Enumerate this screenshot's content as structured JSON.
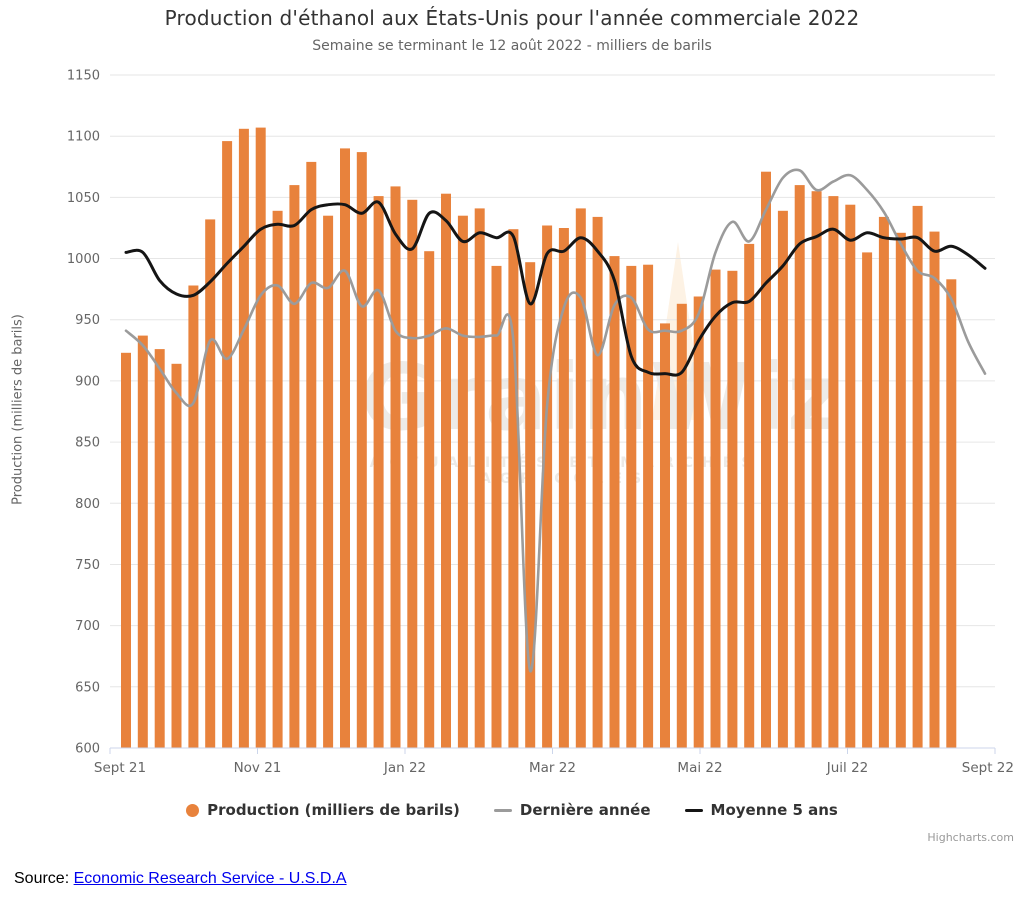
{
  "title": "Production d'éthanol aux États-Unis pour l'année commerciale 2022",
  "subtitle": "Semaine se terminant le 12 août 2022 - milliers de barils",
  "y_axis_title": "Production (milliers de barils)",
  "credits": "Highcharts.com",
  "watermark": {
    "brand": "GrainWiz",
    "tagline": "ACTUALITÉS ET MARCHÉS AGRICOLES"
  },
  "source": {
    "prefix": "Source: ",
    "link_text": "Economic Research Service - U.S.D.A"
  },
  "legend": [
    {
      "label": "Production (milliers de barils)",
      "marker": "circle",
      "color": "#e8823c"
    },
    {
      "label": "Dernière année",
      "marker": "line",
      "color": "#9b9b9b"
    },
    {
      "label": "Moyenne 5 ans",
      "marker": "line",
      "color": "#151515"
    }
  ],
  "chart_data": {
    "type": "bar",
    "title": "Production d'éthanol aux États-Unis pour l'année commerciale 2022",
    "subtitle": "Semaine se terminant le 12 août 2022 - milliers de barils",
    "xlabel": "",
    "ylabel": "Production (milliers de barils)",
    "ylim": [
      600,
      1150
    ],
    "y_tick_step": 50,
    "grid": true,
    "legend_position": "bottom",
    "x_tick_labels": [
      "Sept 21",
      "Nov 21",
      "Jan 22",
      "Mar 22",
      "Mai 22",
      "Juil 22",
      "Sept 22"
    ],
    "colors": {
      "bar": "#e8823c",
      "last_year": "#9b9b9b",
      "five_year_avg": "#151515",
      "grid": "#e6e6e6",
      "axis": "#ccd6eb",
      "tick_text": "#666666"
    },
    "series": [
      {
        "name": "Production (milliers de barils)",
        "type": "bar",
        "color": "#e8823c",
        "values": [
          923,
          937,
          926,
          914,
          978,
          1032,
          1096,
          1106,
          1107,
          1039,
          1060,
          1079,
          1035,
          1090,
          1087,
          1051,
          1059,
          1048,
          1006,
          1053,
          1035,
          1041,
          994,
          1024,
          997,
          1027,
          1025,
          1041,
          1034,
          1002,
          994,
          995,
          947,
          963,
          969,
          991,
          990,
          1012,
          1071,
          1039,
          1060,
          1055,
          1051,
          1044,
          1005,
          1034,
          1021,
          1043,
          1022,
          983
        ]
      },
      {
        "name": "Dernière année",
        "type": "line",
        "color": "#9b9b9b",
        "values": [
          941,
          929,
          910,
          890,
          882,
          933,
          918,
          942,
          970,
          978,
          963,
          980,
          976,
          990,
          961,
          974,
          941,
          935,
          937,
          943,
          937,
          936,
          937,
          933,
          663,
          880,
          960,
          968,
          921,
          962,
          968,
          942,
          941,
          941,
          955,
          1005,
          1030,
          1014,
          1040,
          1066,
          1072,
          1056,
          1063,
          1068,
          1056,
          1038,
          1012,
          990,
          984,
          967,
          932,
          906
        ]
      },
      {
        "name": "Moyenne 5 ans",
        "type": "line",
        "color": "#151515",
        "values": [
          1005,
          1005,
          982,
          971,
          970,
          981,
          996,
          1010,
          1024,
          1028,
          1027,
          1040,
          1044,
          1044,
          1037,
          1046,
          1020,
          1008,
          1037,
          1031,
          1014,
          1021,
          1017,
          1018,
          963,
          1004,
          1006,
          1017,
          1006,
          982,
          920,
          907,
          906,
          907,
          933,
          953,
          964,
          965,
          980,
          994,
          1012,
          1018,
          1024,
          1015,
          1021,
          1017,
          1016,
          1017,
          1006,
          1010,
          1003,
          992
        ]
      }
    ]
  }
}
